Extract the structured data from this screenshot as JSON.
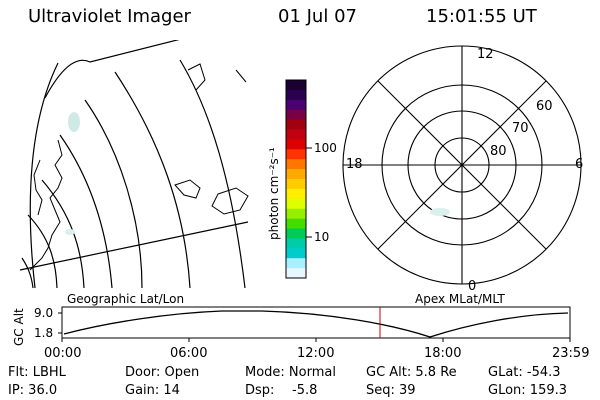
{
  "header": {
    "title": "Ultraviolet Imager",
    "date": "01 Jul 07",
    "time": "15:01:55 UT"
  },
  "colorbar": {
    "unit_label": "photon cm⁻²s⁻¹",
    "ticks": [
      "100",
      "10"
    ],
    "colors": [
      "#1a0033",
      "#2a0050",
      "#4a0070",
      "#7a0045",
      "#a00010",
      "#c00010",
      "#dd0000",
      "#ff3300",
      "#ff7700",
      "#ffaa00",
      "#ffcc00",
      "#ffee00",
      "#ddff00",
      "#99ee00",
      "#44dd00",
      "#00cc55",
      "#00ccaa",
      "#00cccc",
      "#aaeeff",
      "#e8f6ff"
    ]
  },
  "geo_map": {
    "label": "Geographic Lat/Lon"
  },
  "polar_plot": {
    "label": "Apex MLat/MLT",
    "mlt_labels": [
      "12",
      "18",
      "6",
      "0"
    ],
    "lat_labels": [
      "60",
      "70",
      "80"
    ]
  },
  "altitude_plot": {
    "ylabel": "GC Alt",
    "yticks": [
      "9.0",
      "1.8"
    ],
    "xticks": [
      "00:00",
      "06:00",
      "12:00",
      "18:00",
      "23:59"
    ],
    "marker_color": "#cc0000"
  },
  "info": {
    "filter": "Flt: LBHL",
    "ip": "IP: 36.0",
    "door": "Door: Open",
    "gain": "Gain: 14",
    "mode": "Mode: Normal",
    "dsp_label": "Dsp:",
    "dsp_value": "-5.8",
    "gc_alt": "GC Alt: 5.8 Re",
    "seq": "Seq: 39",
    "glat": "GLat: -54.3",
    "glon": "GLon: 159.3"
  }
}
